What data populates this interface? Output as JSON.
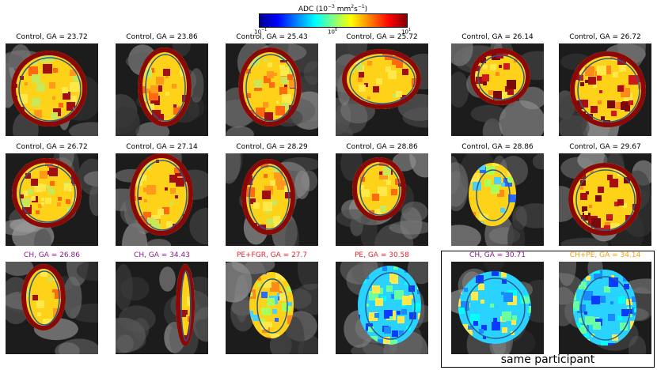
{
  "colorbar": {
    "title": "ADC (10",
    "title_exp": "−3",
    "title_unit": " mm",
    "title_unit_exp": "2",
    "title_s": "s",
    "title_s_exp": "−1",
    "title_close": ")",
    "tick_min_base": "10",
    "tick_min_exp": "−1",
    "tick_mid_base": "10",
    "tick_mid_exp": "0",
    "tick_max_base": "10",
    "tick_max_exp": "1",
    "gradient_colors": [
      "#00008f",
      "#0000ff",
      "#0080ff",
      "#00ffff",
      "#80ff80",
      "#ffff00",
      "#ff8000",
      "#ff0000",
      "#800000"
    ]
  },
  "panels": [
    {
      "title": "Control, GA = 23.72",
      "color": "#000000"
    },
    {
      "title": "Control, GA = 23.86",
      "color": "#000000"
    },
    {
      "title": "Control, GA = 25.43",
      "color": "#000000"
    },
    {
      "title": "Control, GA = 25.72",
      "color": "#000000"
    },
    {
      "title": "Control, GA = 26.14",
      "color": "#000000"
    },
    {
      "title": "Control, GA = 26.72",
      "color": "#000000"
    },
    {
      "title": "Control, GA = 26.72",
      "color": "#000000"
    },
    {
      "title": "Control, GA = 27.14",
      "color": "#000000"
    },
    {
      "title": "Control, GA = 28.29",
      "color": "#000000"
    },
    {
      "title": "Control, GA = 28.86",
      "color": "#000000"
    },
    {
      "title": "Control, GA = 28.86",
      "color": "#000000"
    },
    {
      "title": "Control, GA = 29.67",
      "color": "#000000"
    },
    {
      "title": "CH, GA = 26.86",
      "color": "#8b1a8b"
    },
    {
      "title": "CH, GA = 34.43",
      "color": "#8b1a8b"
    },
    {
      "title": "PE+FGR, GA = 27.7",
      "color": "#e8202a"
    },
    {
      "title": "PE, GA = 30.58",
      "color": "#e8202a"
    },
    {
      "title": "CH, GA = 30.71",
      "color": "#8b1a8b"
    },
    {
      "title": "CH+PE, GA = 34.14",
      "color": "#f5a000"
    }
  ],
  "group_label": "same participant"
}
